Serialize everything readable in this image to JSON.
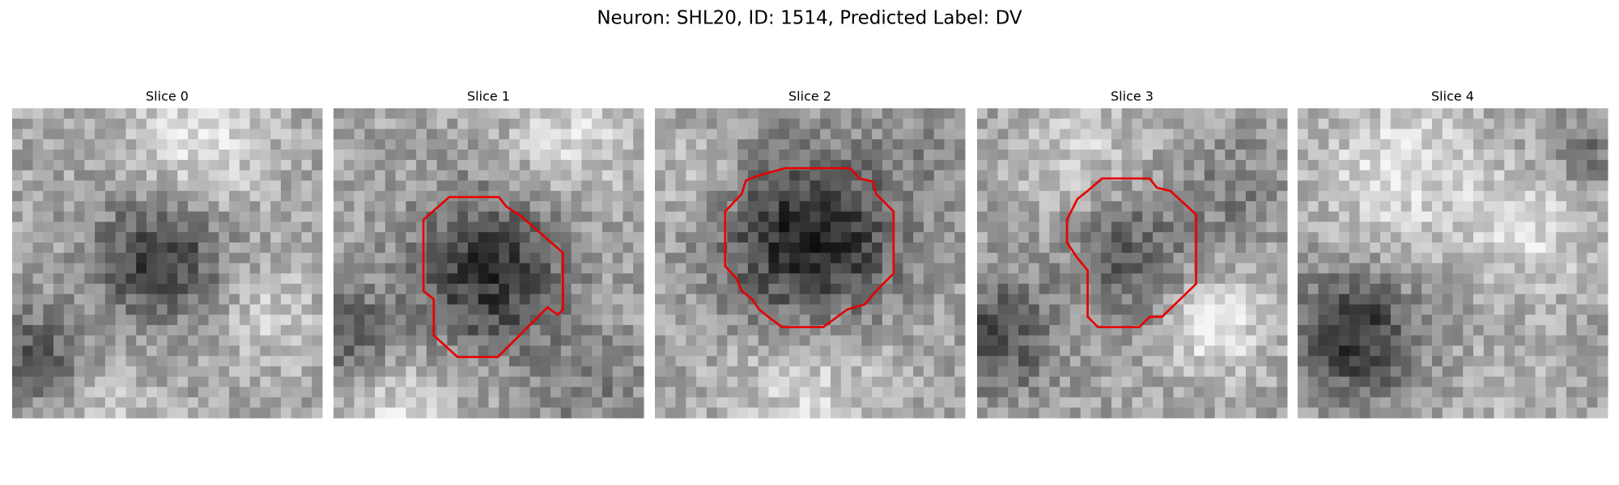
{
  "figure": {
    "title": "Neuron: SHL20, ID: 1514, Predicted Label: DV",
    "panels": [
      {
        "title": "Slice 0"
      },
      {
        "title": "Slice 1"
      },
      {
        "title": "Slice 2"
      },
      {
        "title": "Slice 3"
      },
      {
        "title": "Slice 4"
      }
    ]
  }
}
